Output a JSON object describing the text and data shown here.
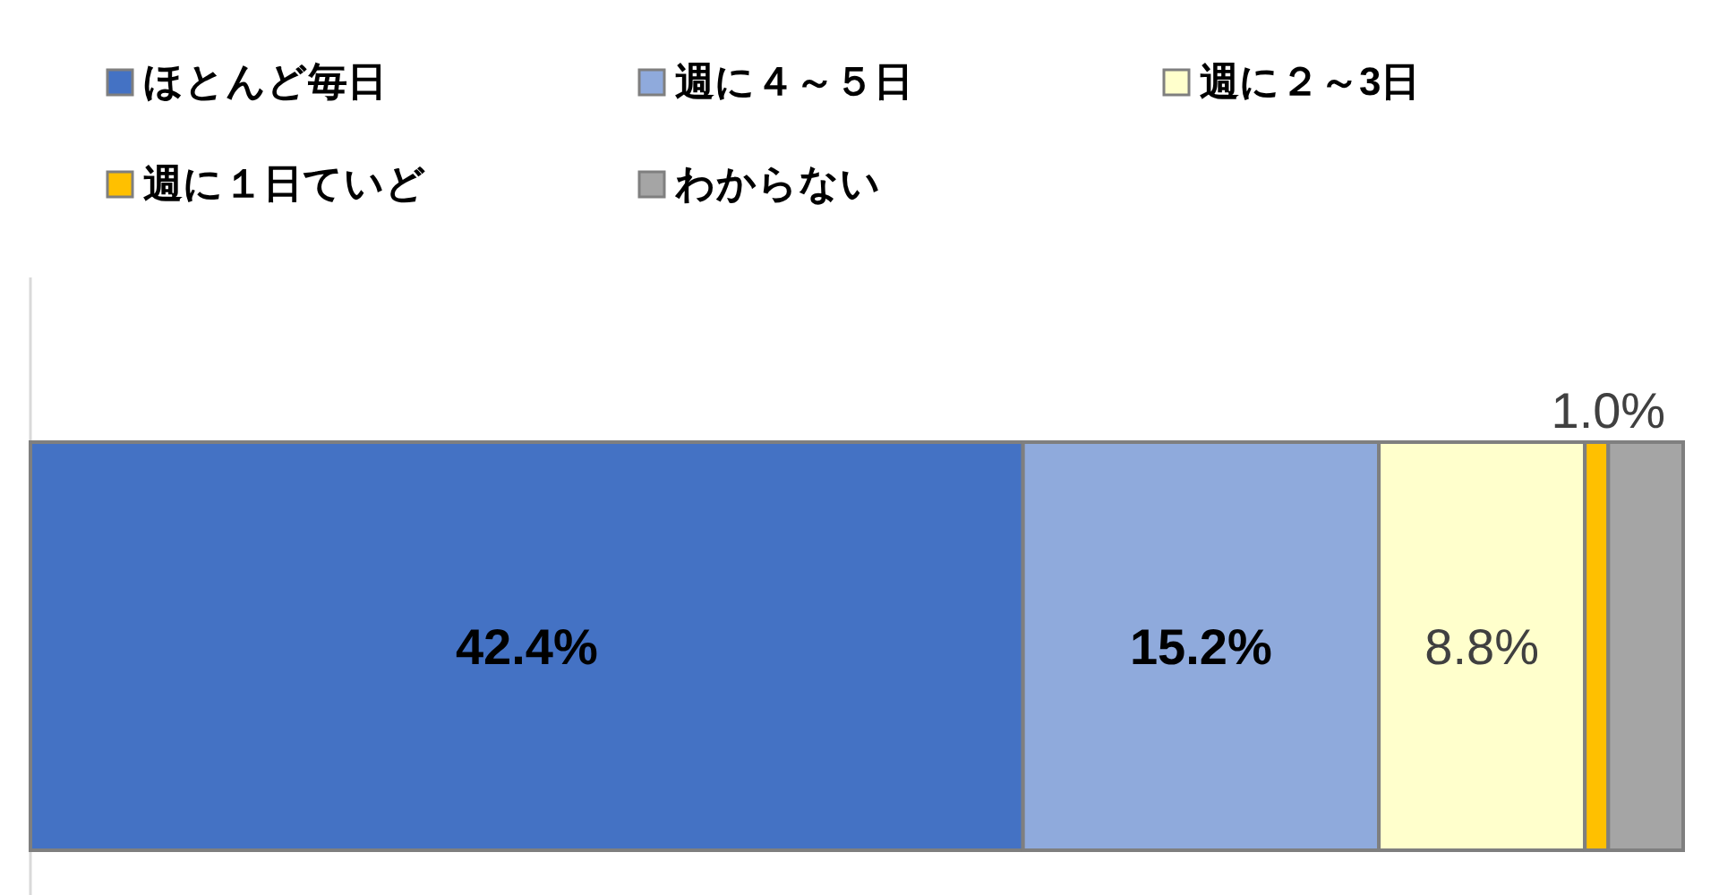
{
  "chart_data": {
    "type": "bar",
    "orientation": "horizontal",
    "stacked": true,
    "legend": "top left",
    "categories": [
      null
    ],
    "series": [
      {
        "name": "ほとんど毎日",
        "color": "#4472c4",
        "values": [
          42.4
        ],
        "value_labels": [
          "42.4%"
        ]
      },
      {
        "name": "週に４～５日",
        "color": "#8faadc",
        "values": [
          15.2
        ],
        "value_labels": [
          "15.2%"
        ]
      },
      {
        "name": "週に２～3日",
        "color": "#ffffcc",
        "values": [
          8.8
        ],
        "value_labels": [
          "8.8%"
        ]
      },
      {
        "name": "週に１日ていど",
        "color": "#ffc000",
        "values": [
          1.0
        ],
        "value_labels": [
          "1.0%"
        ]
      },
      {
        "name": "わからない",
        "color": "#a5a5a5",
        "values": [
          3.2
        ],
        "value_labels": [
          null
        ]
      }
    ]
  }
}
